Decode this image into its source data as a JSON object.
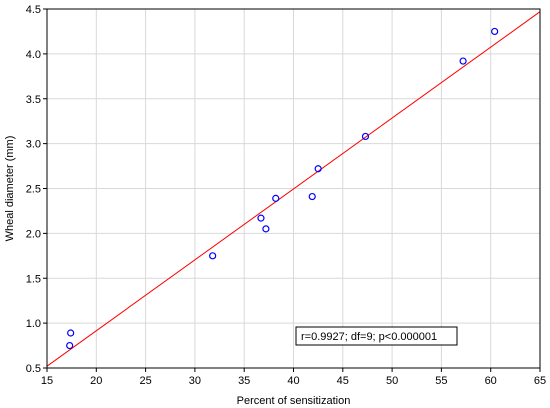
{
  "chart_data": {
    "type": "scatter",
    "xlabel": "Percent of sensitization",
    "ylabel": "Wheal diameter (mm)",
    "xlim": [
      15,
      65
    ],
    "ylim": [
      0.5,
      4.5
    ],
    "xticks": [
      15,
      20,
      25,
      30,
      35,
      40,
      45,
      50,
      55,
      60,
      65
    ],
    "xtick_labels": [
      "15",
      "20",
      "25",
      "30",
      "35",
      "40",
      "45",
      "50",
      "55",
      "60",
      "65"
    ],
    "yticks": [
      0.5,
      1.0,
      1.5,
      2.0,
      2.5,
      3.0,
      3.5,
      4.0,
      4.5
    ],
    "ytick_labels": [
      "0.5",
      "1.0",
      "1.5",
      "2.0",
      "2.5",
      "3.0",
      "3.5",
      "4.0",
      "4.5"
    ],
    "grid": true,
    "series": [
      {
        "x": [
          17.4,
          17.3,
          31.8,
          36.7,
          37.2,
          38.2,
          41.9,
          42.5,
          47.3,
          57.2,
          60.4
        ],
        "y": [
          0.89,
          0.75,
          1.75,
          2.17,
          2.05,
          2.39,
          2.41,
          2.72,
          3.08,
          3.92,
          4.25
        ],
        "marker": "open-circle",
        "color": "#0000ff"
      }
    ],
    "fit_line": {
      "x": [
        15,
        65
      ],
      "y": [
        0.52,
        4.47
      ],
      "color": "#ff0000"
    },
    "annotation": "r=0.9927; df=9; p<0.000001"
  }
}
